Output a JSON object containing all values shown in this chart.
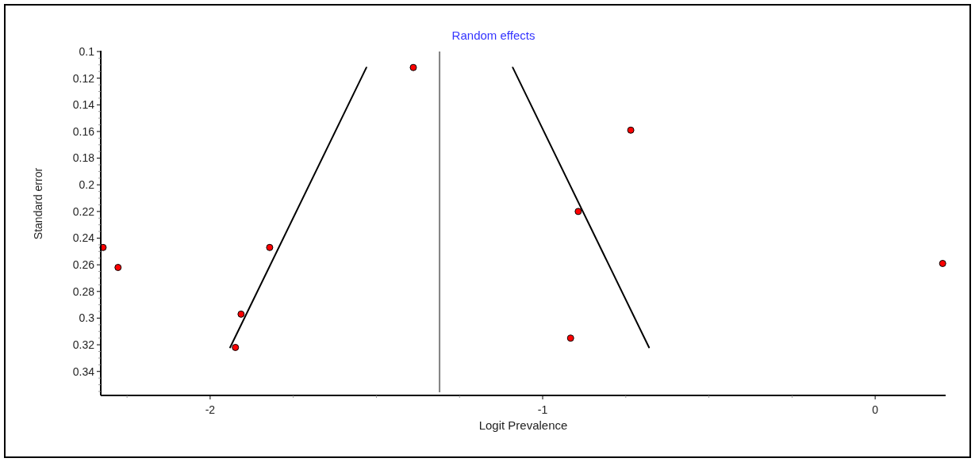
{
  "chart_data": {
    "type": "scatter",
    "title": "Random effects",
    "xlabel": "Logit Prevalence",
    "ylabel": "Standard error",
    "xlim": [
      -2.329,
      0.212
    ],
    "ylim": [
      0.358,
      0.1
    ],
    "xticks": [
      {
        "value": -2.25,
        "label": null
      },
      -2,
      {
        "value": -1.75,
        "label": null
      },
      {
        "value": -1.5,
        "label": null
      },
      {
        "value": -1.25,
        "label": null
      },
      -1,
      {
        "value": -0.75,
        "label": null
      },
      {
        "value": -0.5,
        "label": null
      },
      {
        "value": -0.25,
        "label": null
      },
      0
    ],
    "yticks": [
      0.1,
      {
        "value": 0.105,
        "label": null
      },
      {
        "value": 0.11,
        "label": null
      },
      {
        "value": 0.115,
        "label": null
      },
      0.12,
      {
        "value": 0.125,
        "label": null
      },
      {
        "value": 0.13,
        "label": null
      },
      {
        "value": 0.135,
        "label": null
      },
      0.14,
      {
        "value": 0.145,
        "label": null
      },
      {
        "value": 0.15,
        "label": null
      },
      {
        "value": 0.155,
        "label": null
      },
      0.16,
      {
        "value": 0.165,
        "label": null
      },
      {
        "value": 0.17,
        "label": null
      },
      {
        "value": 0.175,
        "label": null
      },
      0.18,
      {
        "value": 0.185,
        "label": null
      },
      {
        "value": 0.19,
        "label": null
      },
      {
        "value": 0.195,
        "label": null
      },
      0.2,
      {
        "value": 0.205,
        "label": null
      },
      {
        "value": 0.21,
        "label": null
      },
      {
        "value": 0.215,
        "label": null
      },
      0.22,
      {
        "value": 0.225,
        "label": null
      },
      {
        "value": 0.23,
        "label": null
      },
      {
        "value": 0.235,
        "label": null
      },
      0.24,
      {
        "value": 0.245,
        "label": null
      },
      {
        "value": 0.25,
        "label": null
      },
      {
        "value": 0.255,
        "label": null
      },
      0.26,
      {
        "value": 0.265,
        "label": null
      },
      {
        "value": 0.27,
        "label": null
      },
      {
        "value": 0.275,
        "label": null
      },
      0.28,
      {
        "value": 0.285,
        "label": null
      },
      {
        "value": 0.29,
        "label": null
      },
      {
        "value": 0.295,
        "label": null
      },
      0.3,
      {
        "value": 0.305,
        "label": null
      },
      {
        "value": 0.31,
        "label": null
      },
      {
        "value": 0.315,
        "label": null
      },
      0.32,
      {
        "value": 0.325,
        "label": null
      },
      {
        "value": 0.33,
        "label": null
      },
      {
        "value": 0.335,
        "label": null
      },
      0.34,
      {
        "value": 0.345,
        "label": null
      },
      {
        "value": 0.35,
        "label": null
      },
      {
        "value": 0.355,
        "label": null
      }
    ],
    "grid": false,
    "series": [
      {
        "color": "#ff0000",
        "marker": "circle",
        "x": [
          -1.389,
          -2.322,
          -2.277,
          -1.821,
          -1.907,
          -1.924,
          -0.735,
          -0.893,
          -0.916,
          0.203
        ],
        "values": [
          0.112,
          0.247,
          0.262,
          0.247,
          0.297,
          0.322,
          0.159,
          0.22,
          0.315,
          0.259
        ]
      },
      {
        "type": "line",
        "color": "#000000",
        "marker": "none",
        "line_style": "solid",
        "x": [
          -1.53,
          -1.94
        ],
        "values": [
          0.112,
          0.322
        ]
      },
      {
        "type": "line",
        "color": "#000000",
        "marker": "none",
        "line_style": "solid",
        "x": [
          -1.09,
          -0.68
        ],
        "values": [
          0.112,
          0.322
        ]
      }
    ],
    "ref_lines": [
      {
        "axis": "x",
        "value": -1.31,
        "color": "#808080"
      }
    ]
  }
}
